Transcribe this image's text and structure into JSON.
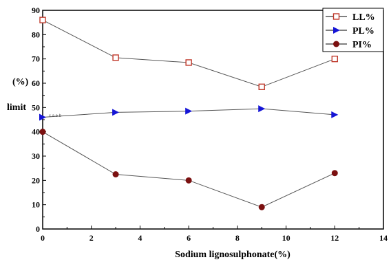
{
  "chart_data": {
    "type": "line",
    "title": "",
    "xlabel": "Sodium lignosulphonate(%)",
    "ylabel_parts": [
      "(%)",
      "limit"
    ],
    "xlim": [
      0,
      14
    ],
    "ylim": [
      0,
      90
    ],
    "x_ticks": [
      0,
      2,
      4,
      6,
      8,
      10,
      12,
      14
    ],
    "y_ticks": [
      0,
      10,
      20,
      30,
      40,
      50,
      60,
      70,
      80,
      90
    ],
    "grid": false,
    "legend_position": "top-right",
    "annotation": "c a e b",
    "series": [
      {
        "name": "LL%",
        "marker": "square-open",
        "color": "#c0392b",
        "x": [
          0,
          3,
          6,
          9,
          12
        ],
        "y": [
          86,
          70.5,
          68.5,
          58.5,
          70
        ]
      },
      {
        "name": "PL%",
        "marker": "triangle-right",
        "color": "#1515d6",
        "x": [
          0,
          3,
          6,
          9,
          12
        ],
        "y": [
          46,
          48,
          48.5,
          49.5,
          47
        ]
      },
      {
        "name": "PI%",
        "marker": "circle-filled",
        "color": "#7b1010",
        "x": [
          0,
          3,
          6,
          9,
          12
        ],
        "y": [
          40,
          22.5,
          20,
          9,
          23
        ]
      }
    ]
  }
}
